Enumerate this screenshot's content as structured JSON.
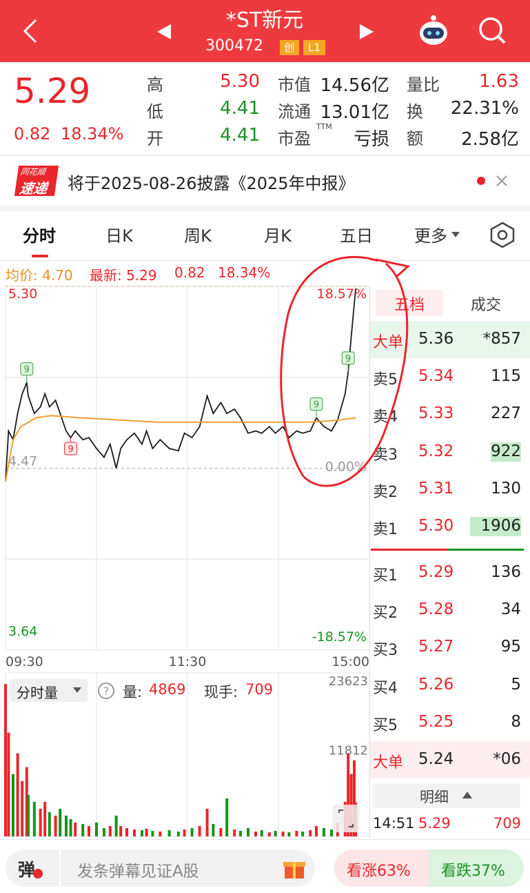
{
  "header": {
    "title": "*ST新元",
    "code": "300472",
    "badges": [
      "创",
      "L1"
    ]
  },
  "quote": {
    "price": "5.29",
    "change": "0.82",
    "change_pct": "18.34%",
    "stats": [
      [
        {
          "label": "高",
          "value": "5.30"
        },
        {
          "label": "市值",
          "value": "14.56亿"
        },
        {
          "label": "量比",
          "value": "1.63"
        }
      ],
      [
        {
          "label": "低",
          "value": "4.41"
        },
        {
          "label": "流通",
          "value": "13.01亿"
        },
        {
          "label": "换",
          "value": "22.31%"
        }
      ],
      [
        {
          "label": "开",
          "value": "4.41"
        },
        {
          "label": "市盈",
          "sup": "TTM",
          "value": "亏损"
        },
        {
          "label": "额",
          "value": "2.58亿"
        }
      ]
    ]
  },
  "notice": {
    "badge": [
      "同花顺",
      "速递"
    ],
    "text": "将于2025-08-26披露《2025年中报》"
  },
  "tabs": [
    "分时",
    "日K",
    "周K",
    "月K",
    "五日",
    "更多"
  ],
  "info": {
    "avg": "均价: 4.70",
    "latest": "最新: 5.29",
    "change": "0.82",
    "change_pct": "18.34%"
  },
  "chart_data": {
    "type": "line",
    "x": [
      0,
      2,
      5,
      8,
      11,
      14,
      15,
      19,
      23,
      26,
      29,
      33,
      36,
      40,
      43,
      46,
      51,
      55,
      60,
      65,
      69,
      73,
      76,
      80,
      85,
      90,
      93,
      97,
      102,
      108,
      114,
      118,
      123,
      128,
      133,
      137,
      142,
      146,
      151,
      155,
      160,
      165,
      169,
      174,
      178,
      183,
      187,
      192,
      196,
      201,
      205,
      210,
      215,
      219,
      224,
      226,
      228,
      230,
      231
    ],
    "series": [
      {
        "color": "#1a1a1a",
        "values": [
          4.41,
          4.64,
          4.6,
          4.72,
          4.81,
          4.86,
          4.8,
          4.72,
          4.75,
          4.81,
          4.75,
          4.78,
          4.72,
          4.64,
          4.61,
          4.64,
          4.6,
          4.61,
          4.56,
          4.52,
          4.58,
          4.47,
          4.56,
          4.6,
          4.63,
          4.58,
          4.64,
          4.56,
          4.6,
          4.56,
          4.55,
          4.63,
          4.61,
          4.66,
          4.8,
          4.72,
          4.77,
          4.72,
          4.74,
          4.7,
          4.63,
          4.64,
          4.63,
          4.66,
          4.63,
          4.66,
          4.61,
          4.64,
          4.63,
          4.64,
          4.7,
          4.66,
          4.64,
          4.69,
          4.81,
          4.91,
          5.07,
          5.22,
          5.29
        ]
      },
      {
        "color": "#f0a030",
        "x": [
          0,
          5,
          10,
          20,
          30,
          50,
          100,
          150,
          200,
          220,
          231
        ],
        "values": [
          4.41,
          4.6,
          4.66,
          4.7,
          4.71,
          4.7,
          4.68,
          4.68,
          4.68,
          4.69,
          4.7
        ]
      }
    ],
    "xlim": [
      0,
      240
    ],
    "xticks": [
      {
        "value": 0,
        "label": "09:30"
      },
      {
        "value": 120,
        "label": "11:30"
      },
      {
        "value": 240,
        "label": "15:00"
      }
    ],
    "ylim": [
      3.64,
      5.3
    ],
    "yticks": [
      {
        "value": 5.3,
        "label": "5.30"
      },
      4.47,
      3.64
    ],
    "y2lim": [
      -18.57,
      18.57
    ],
    "y2ticks": [
      {
        "value": 18.57,
        "label": "18.57%"
      },
      {
        "value": 0,
        "label": "0.00%"
      },
      {
        "value": -18.57,
        "label": "-18.57%"
      }
    ],
    "annotations": [
      {
        "x": 14,
        "y": 4.86,
        "label": "9",
        "color": "#3aa03a"
      },
      {
        "x": 43,
        "y": 4.61,
        "label": "9",
        "color": "#e8262c"
      },
      {
        "x": 205,
        "y": 4.7,
        "label": "9",
        "color": "#3aa03a"
      },
      {
        "x": 226,
        "y": 4.91,
        "label": "9",
        "color": "#3aa03a"
      }
    ],
    "volume": {
      "ylim": [
        0,
        23623
      ],
      "yticks": [
        23623,
        11812
      ],
      "values": [
        22000,
        15000,
        9000,
        12000,
        8000,
        10000,
        6000,
        5000,
        4000,
        5000,
        3500,
        3000,
        4000,
        3000,
        2500,
        2000,
        1800,
        1500,
        2000,
        1200,
        1500,
        3000,
        1500,
        1200,
        1000,
        900,
        1100,
        800,
        700,
        900,
        700,
        1000,
        1200,
        1500,
        4000,
        1800,
        1200,
        5500,
        1000,
        800,
        1200,
        700,
        900,
        600,
        800,
        700,
        600,
        800,
        700,
        900,
        1500,
        1200,
        1000,
        2000,
        5000,
        12000,
        9000,
        11000,
        4869
      ]
    }
  },
  "volume_bar": {
    "selector": "分时量",
    "volume_label": "量:",
    "volume": "4869",
    "hand_label": "现手:",
    "hand": "709"
  },
  "order_book": {
    "tabs": [
      "五档",
      "成交"
    ],
    "rows": [
      {
        "label": "大单",
        "price": "5.36",
        "volume": "*857"
      },
      {
        "label": "卖5",
        "price": "5.34",
        "volume": "115"
      },
      {
        "label": "卖4",
        "price": "5.33",
        "volume": "227"
      },
      {
        "label": "卖3",
        "price": "5.32",
        "volume": "922"
      },
      {
        "label": "卖2",
        "price": "5.31",
        "volume": "130"
      },
      {
        "label": "卖1",
        "price": "5.30",
        "volume": "1906"
      },
      {
        "label": "买1",
        "price": "5.29",
        "volume": "136"
      },
      {
        "label": "买2",
        "price": "5.28",
        "volume": "34"
      },
      {
        "label": "买3",
        "price": "5.27",
        "volume": "95"
      },
      {
        "label": "买4",
        "price": "5.26",
        "volume": "5"
      },
      {
        "label": "买5",
        "price": "5.25",
        "volume": "8"
      },
      {
        "label": "大单",
        "price": "5.24",
        "volume": "*06"
      }
    ],
    "detail": "明细",
    "trades": [
      {
        "time": "14:51",
        "price": "5.29",
        "volume": "709"
      }
    ]
  },
  "footer": {
    "danmu": "弹",
    "placeholder": "发条弹幕见证A股",
    "up": "看涨63%",
    "down": "看跌37%"
  }
}
